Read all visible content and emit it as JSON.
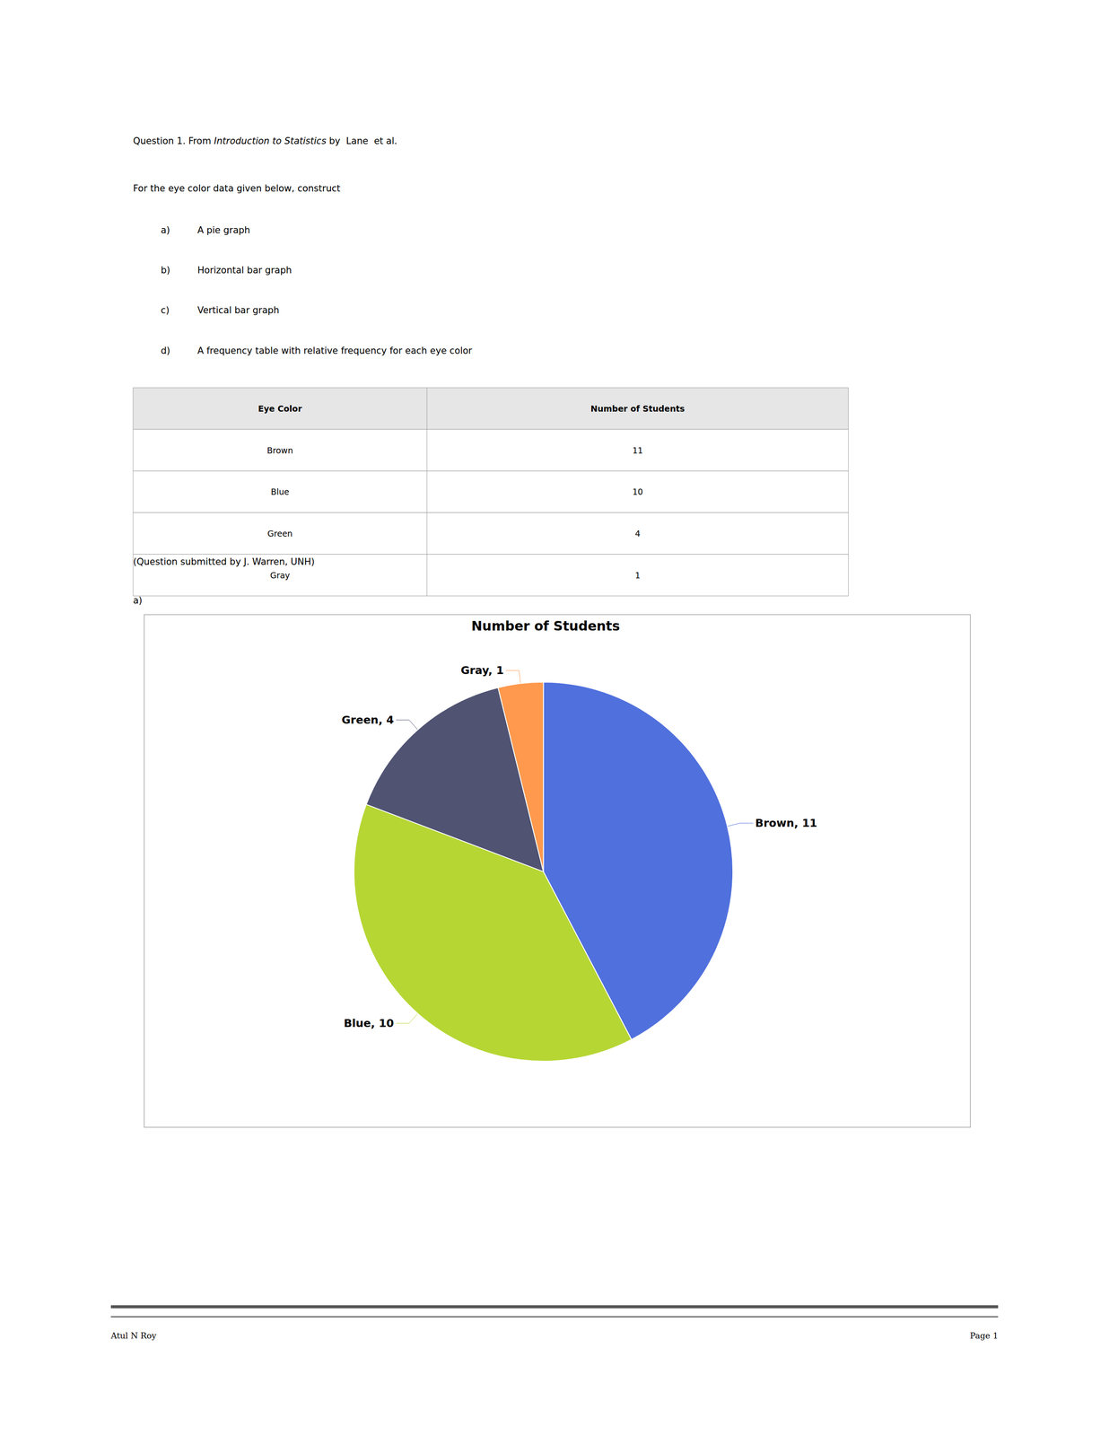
{
  "chart_data": {
    "type": "pie",
    "title": "Number of Students",
    "categories": [
      "Brown",
      "Blue",
      "Green",
      "Gray"
    ],
    "values": [
      11,
      10,
      4,
      1
    ],
    "data_labels": true,
    "value_labels": [
      "Brown, 11",
      "Blue, 10",
      "Green, 4",
      "Gray, 1"
    ],
    "annotations": [
      "Question 1. From ",
      "Introduction to Statistics",
      " by  Lane  et al.",
      "For the eye color data given below, construct",
      "a)",
      "A pie graph",
      "b)",
      "Horizontal bar graph",
      "c)",
      "Vertical bar graph",
      "d)",
      "A frequency table with relative frequency for each eye color",
      "Eye Color",
      "Number of Students",
      "Brown",
      "11",
      "Blue",
      "10",
      "Green",
      "4",
      "Gray",
      "1",
      "(Question submitted by J. Warren, UNH)",
      "a)",
      "Atul N Roy",
      "Page 1"
    ]
  }
}
